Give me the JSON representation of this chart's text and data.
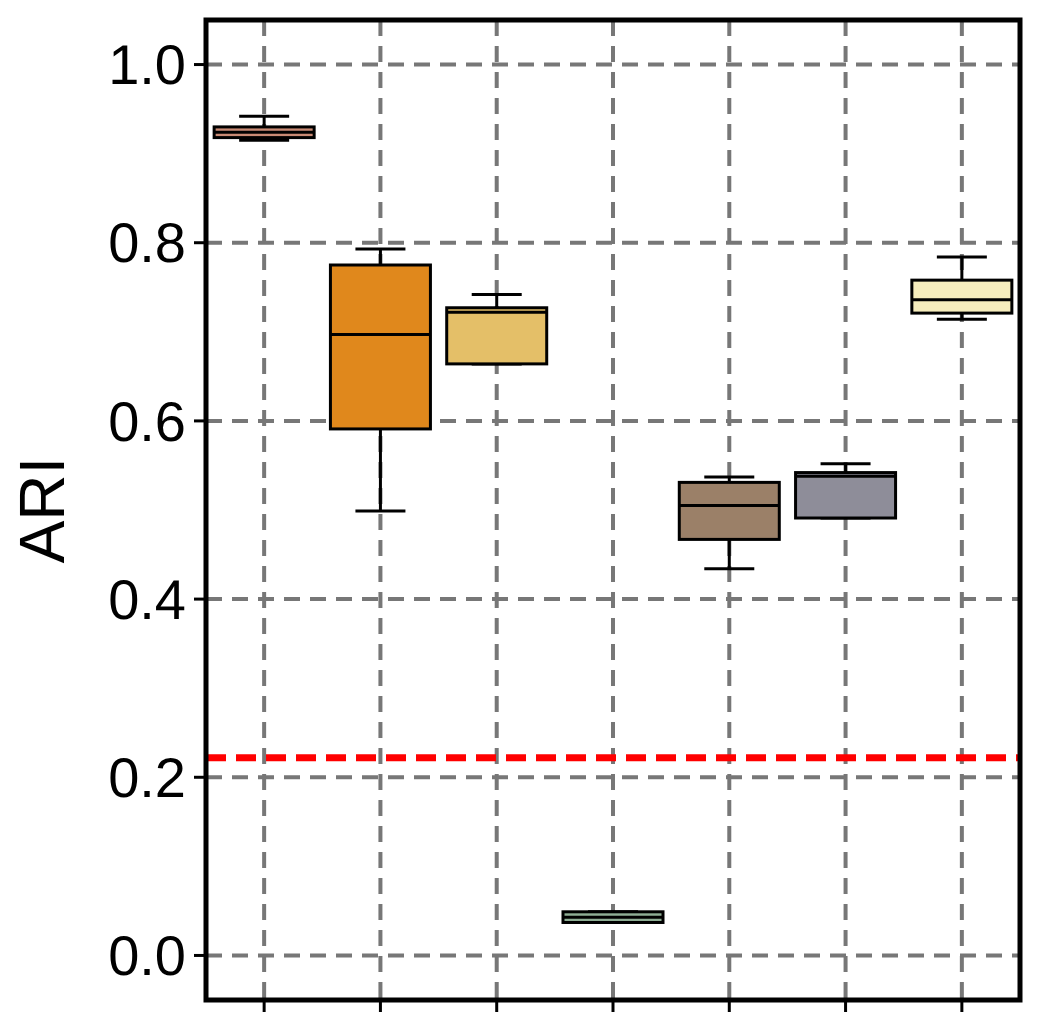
{
  "chart_data": {
    "type": "box",
    "ylabel": "ARI",
    "categories": [
      null,
      null,
      null,
      null,
      null,
      null,
      null
    ],
    "colors": [
      "#c98a74",
      "#e0881c",
      "#e4bf68",
      "#8fae95",
      "#9b8068",
      "#8e8d99",
      "#f6edbd"
    ],
    "boxes": [
      {
        "low": 0.915,
        "q1": 0.918,
        "median": 0.924,
        "q3": 0.93,
        "high": 0.942
      },
      {
        "low": 0.499,
        "q1": 0.591,
        "median": 0.697,
        "q3": 0.775,
        "high": 0.793
      },
      {
        "low": 0.664,
        "q1": 0.664,
        "median": 0.722,
        "q3": 0.727,
        "high": 0.742
      },
      {
        "low": 0.037,
        "q1": 0.037,
        "median": 0.043,
        "q3": 0.049,
        "high": 0.049
      },
      {
        "low": 0.434,
        "q1": 0.467,
        "median": 0.505,
        "q3": 0.531,
        "high": 0.537
      },
      {
        "low": 0.491,
        "q1": 0.491,
        "median": 0.538,
        "q3": 0.542,
        "high": 0.552
      },
      {
        "low": 0.714,
        "q1": 0.721,
        "median": 0.736,
        "q3": 0.758,
        "high": 0.784
      }
    ],
    "ylim": [
      -0.05,
      1.05
    ],
    "yticks": [
      {
        "value": 0,
        "label": "0.0"
      },
      {
        "value": 0.2,
        "label": "0.2"
      },
      {
        "value": 0.4,
        "label": "0.4"
      },
      {
        "value": 0.6,
        "label": "0.6"
      },
      {
        "value": 0.8,
        "label": "0.8"
      },
      {
        "value": 1,
        "label": "1.0"
      }
    ],
    "grid": true,
    "tick_labels": "y",
    "ref_lines": [
      {
        "axis": "y",
        "value": 0.222,
        "color": "#ff0000",
        "line_style": "dashed"
      }
    ]
  }
}
